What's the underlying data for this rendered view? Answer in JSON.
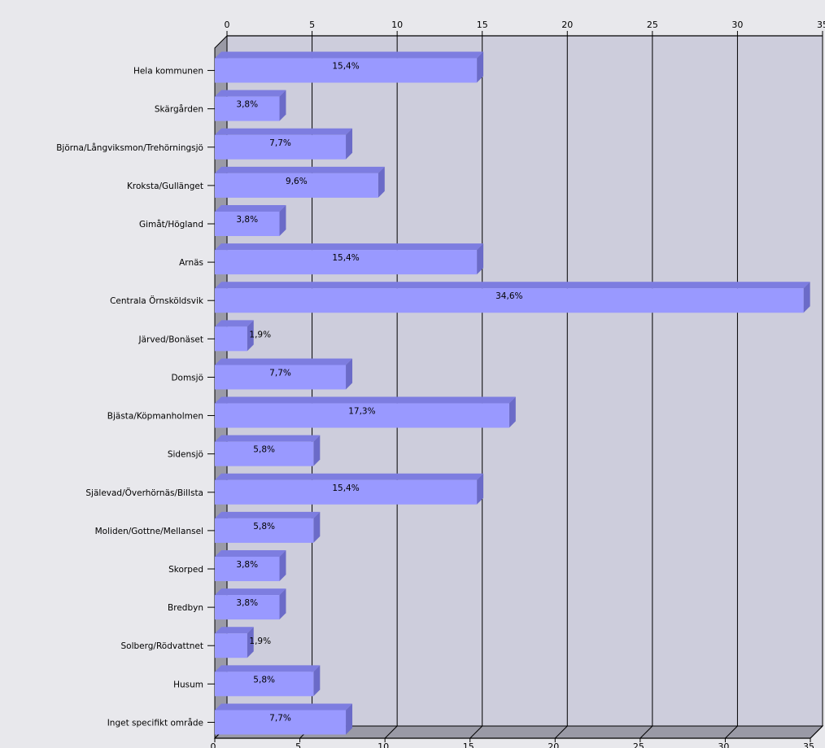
{
  "chart_data": {
    "type": "bar",
    "orientation": "horizontal",
    "three_d": true,
    "title": "",
    "xlabel": "",
    "ylabel": "",
    "xlim": [
      0,
      35
    ],
    "x_ticks": [
      0,
      5,
      10,
      15,
      20,
      25,
      30,
      35
    ],
    "grid": true,
    "categories": [
      "Hela kommunen",
      "Skärgården",
      "Björna/Långviksmon/Trehörningsjö",
      "Kroksta/Gullänget",
      "Gimåt/Högland",
      "Arnäs",
      "Centrala Örnsköldsvik",
      "Järved/Bonäset",
      "Domsjö",
      "Bjästa/Köpmanholmen",
      "Sidensjö",
      "Själevad/Överhörnäs/Billsta",
      "Moliden/Gottne/Mellansel",
      "Skorped",
      "Bredbyn",
      "Solberg/Rödvattnet",
      "Husum",
      "Inget specifikt område"
    ],
    "values": [
      15.4,
      3.8,
      7.7,
      9.6,
      3.8,
      15.4,
      34.6,
      1.9,
      7.7,
      17.3,
      5.8,
      15.4,
      5.8,
      3.8,
      3.8,
      1.9,
      5.8,
      7.7
    ],
    "value_labels": [
      "15,4%",
      "3,8%",
      "7,7%",
      "9,6%",
      "3,8%",
      "15,4%",
      "34,6%",
      "1,9%",
      "7,7%",
      "17,3%",
      "5,8%",
      "15,4%",
      "5,8%",
      "3,8%",
      "3,8%",
      "1,9%",
      "5,8%",
      "7,7%"
    ],
    "colors": {
      "bar_front": "#9999ff",
      "bar_top": "#7d7de0",
      "bar_side": "#6b6bc8",
      "plot_back": "#cdcddc",
      "plot_floor": "#9a9aa6",
      "plot_wall": "#9a9aa6",
      "gridline": "#000000",
      "background": "#e8e8ec"
    }
  }
}
